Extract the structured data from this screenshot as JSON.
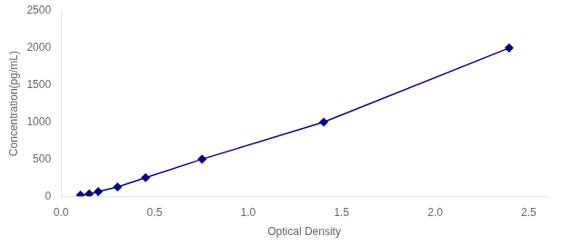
{
  "chart_data": {
    "type": "line",
    "x": [
      0.104,
      0.151,
      0.199,
      0.302,
      0.452,
      0.754,
      1.404,
      2.395
    ],
    "values": [
      15.6,
      31.2,
      62.5,
      125.0,
      250.0,
      500.0,
      1000.0,
      2000.0
    ],
    "color": "#00008B",
    "marker": "diamond",
    "xlabel": "Optical Density",
    "ylabel": "Concentration(pg/mL)",
    "xlim": [
      0.0,
      2.6
    ],
    "ylim": [
      0,
      2500
    ],
    "xticks": [
      {
        "value": 0,
        "label": "0.0"
      },
      0.5,
      {
        "value": 1,
        "label": "1.0"
      },
      1.5,
      {
        "value": 2,
        "label": "2.0"
      },
      2.5
    ],
    "yticks": [
      0,
      500,
      1000,
      1500,
      2000,
      2500
    ],
    "grid": false
  }
}
